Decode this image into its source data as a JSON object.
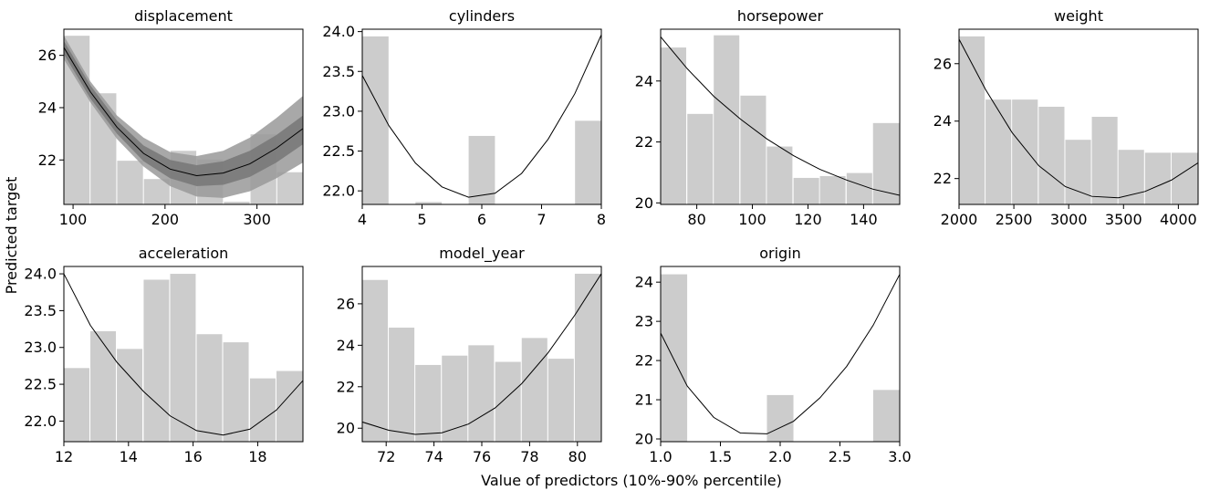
{
  "figure": {
    "ylabel": "Predicted target",
    "xlabel": "Value of predictors (10%-90% percentile)"
  },
  "colors": {
    "bar": "#cccccc",
    "line": "#000000",
    "band_outer": "#999999",
    "band_inner": "#777777"
  },
  "chart_data": [
    {
      "type": "bar+line",
      "title": "displacement",
      "xlim": [
        90,
        350
      ],
      "ylim": [
        20.3,
        27.0
      ],
      "xticks": [
        100,
        200,
        300
      ],
      "xtick_labels": [
        "100",
        "200",
        "300"
      ],
      "yticks": [
        22,
        24,
        26
      ],
      "ytick_labels": [
        "22",
        "24",
        "26"
      ],
      "bars": [
        {
          "x0": 90,
          "x1": 118,
          "value": 26.75
        },
        {
          "x0": 119,
          "x1": 147,
          "value": 24.55
        },
        {
          "x0": 148,
          "x1": 176,
          "value": 21.97
        },
        {
          "x0": 177,
          "x1": 205,
          "value": 21.27
        },
        {
          "x0": 206,
          "x1": 234,
          "value": 22.35
        },
        {
          "x0": 235,
          "x1": 263,
          "value": 22.02
        },
        {
          "x0": 264,
          "x1": 292,
          "value": 20.4
        },
        {
          "x0": 293,
          "x1": 321,
          "value": 22.98
        },
        {
          "x0": 322,
          "x1": 350,
          "value": 21.53
        }
      ],
      "line": {
        "x": [
          90,
          118.9,
          147.8,
          176.7,
          205.6,
          234.4,
          263.3,
          292.2,
          321.1,
          350
        ],
        "y": [
          26.3,
          24.6,
          23.25,
          22.25,
          21.65,
          21.4,
          21.5,
          21.85,
          22.45,
          23.2
        ]
      },
      "band_outer": {
        "x": [
          90,
          118.9,
          147.8,
          176.7,
          205.6,
          234.4,
          263.3,
          292.2,
          321.1,
          350
        ],
        "upper": [
          26.75,
          25.0,
          23.7,
          22.85,
          22.3,
          22.15,
          22.35,
          22.85,
          23.6,
          24.45
        ],
        "lower": [
          25.85,
          24.2,
          22.8,
          21.75,
          21.0,
          20.6,
          20.55,
          20.8,
          21.3,
          21.9
        ]
      },
      "band_inner": {
        "x": [
          90,
          118.9,
          147.8,
          176.7,
          205.6,
          234.4,
          263.3,
          292.2,
          321.1,
          350
        ],
        "upper": [
          26.55,
          24.85,
          23.5,
          22.55,
          22.0,
          21.8,
          21.95,
          22.35,
          22.95,
          23.7
        ],
        "lower": [
          26.05,
          24.35,
          23.0,
          21.95,
          21.3,
          21.0,
          21.05,
          21.35,
          21.9,
          22.6
        ]
      }
    },
    {
      "type": "bar+line",
      "title": "cylinders",
      "xlim": [
        4,
        8
      ],
      "ylim": [
        21.83,
        24.03
      ],
      "xticks": [
        4,
        5,
        6,
        7,
        8
      ],
      "xtick_labels": [
        "4",
        "5",
        "6",
        "7",
        "8"
      ],
      "yticks": [
        22.0,
        22.5,
        23.0,
        23.5,
        24.0
      ],
      "ytick_labels": [
        "22.0",
        "22.5",
        "23.0",
        "23.5",
        "24.0"
      ],
      "bars": [
        {
          "x0": 4.0,
          "x1": 4.44,
          "value": 23.94
        },
        {
          "x0": 4.89,
          "x1": 5.33,
          "value": 21.86
        },
        {
          "x0": 5.78,
          "x1": 6.22,
          "value": 22.69
        },
        {
          "x0": 7.56,
          "x1": 8.0,
          "value": 22.88
        }
      ],
      "line": {
        "x": [
          4,
          4.444,
          4.889,
          5.333,
          5.778,
          6.222,
          6.667,
          7.111,
          7.556,
          8
        ],
        "y": [
          23.45,
          22.82,
          22.35,
          22.05,
          21.92,
          21.97,
          22.22,
          22.65,
          23.22,
          23.96
        ]
      }
    },
    {
      "type": "bar+line",
      "title": "horsepower",
      "xlim": [
        67,
        153
      ],
      "ylim": [
        19.95,
        25.7
      ],
      "xticks": [
        80,
        100,
        120,
        140
      ],
      "xtick_labels": [
        "80",
        "100",
        "120",
        "140"
      ],
      "yticks": [
        20,
        22,
        24
      ],
      "ytick_labels": [
        "20",
        "22",
        "24"
      ],
      "bars": [
        {
          "x0": 67,
          "x1": 76.2,
          "value": 25.1
        },
        {
          "x0": 76.6,
          "x1": 85.8,
          "value": 22.92
        },
        {
          "x0": 86.1,
          "x1": 95.3,
          "value": 25.5
        },
        {
          "x0": 95.7,
          "x1": 104.9,
          "value": 23.52
        },
        {
          "x0": 105.2,
          "x1": 114.4,
          "value": 21.85
        },
        {
          "x0": 114.8,
          "x1": 124.0,
          "value": 20.82
        },
        {
          "x0": 124.3,
          "x1": 133.5,
          "value": 20.88
        },
        {
          "x0": 133.9,
          "x1": 143.1,
          "value": 20.98
        },
        {
          "x0": 143.4,
          "x1": 153,
          "value": 22.62
        }
      ],
      "line": {
        "x": [
          67,
          76.6,
          86.1,
          95.7,
          105.2,
          114.8,
          124.3,
          133.9,
          143.4,
          153
        ],
        "y": [
          25.45,
          24.4,
          23.5,
          22.75,
          22.1,
          21.55,
          21.1,
          20.75,
          20.45,
          20.25
        ]
      }
    },
    {
      "type": "bar+line",
      "title": "weight",
      "xlim": [
        2000,
        4180
      ],
      "ylim": [
        21.1,
        27.2
      ],
      "xticks": [
        2000,
        2500,
        3000,
        3500,
        4000
      ],
      "xtick_labels": [
        "2000",
        "2500",
        "3000",
        "3500",
        "4000"
      ],
      "yticks": [
        22,
        24,
        26
      ],
      "ytick_labels": [
        "22",
        "24",
        "26"
      ],
      "bars": [
        {
          "x0": 2000,
          "x1": 2234,
          "value": 26.95
        },
        {
          "x0": 2242,
          "x1": 2476,
          "value": 24.75
        },
        {
          "x0": 2484,
          "x1": 2718,
          "value": 24.75
        },
        {
          "x0": 2727,
          "x1": 2961,
          "value": 24.5
        },
        {
          "x0": 2969,
          "x1": 3203,
          "value": 23.35
        },
        {
          "x0": 3211,
          "x1": 3445,
          "value": 24.15
        },
        {
          "x0": 3453,
          "x1": 3687,
          "value": 23.0
        },
        {
          "x0": 3696,
          "x1": 3930,
          "value": 22.9
        },
        {
          "x0": 3938,
          "x1": 4180,
          "value": 22.9
        }
      ],
      "line": {
        "x": [
          2000,
          2242,
          2484,
          2727,
          2969,
          3211,
          3453,
          3696,
          3938,
          4180
        ],
        "y": [
          26.85,
          25.1,
          23.6,
          22.45,
          21.72,
          21.38,
          21.33,
          21.55,
          21.95,
          22.55
        ]
      }
    },
    {
      "type": "bar+line",
      "title": "acceleration",
      "xlim": [
        12,
        19.4
      ],
      "ylim": [
        21.72,
        24.1
      ],
      "xticks": [
        12,
        14,
        16,
        18
      ],
      "xtick_labels": [
        "12",
        "14",
        "16",
        "18"
      ],
      "yticks": [
        22.0,
        22.5,
        23.0,
        23.5,
        24.0
      ],
      "ytick_labels": [
        "22.0",
        "22.5",
        "23.0",
        "23.5",
        "24.0"
      ],
      "bars": [
        {
          "x0": 12.0,
          "x1": 12.79,
          "value": 22.72
        },
        {
          "x0": 12.82,
          "x1": 13.61,
          "value": 23.22
        },
        {
          "x0": 13.64,
          "x1": 14.43,
          "value": 22.98
        },
        {
          "x0": 14.47,
          "x1": 15.26,
          "value": 23.92
        },
        {
          "x0": 15.29,
          "x1": 16.08,
          "value": 24.0
        },
        {
          "x0": 16.11,
          "x1": 16.9,
          "value": 23.18
        },
        {
          "x0": 16.93,
          "x1": 17.72,
          "value": 23.07
        },
        {
          "x0": 17.76,
          "x1": 18.55,
          "value": 22.58
        },
        {
          "x0": 18.58,
          "x1": 19.4,
          "value": 22.68
        }
      ],
      "line": {
        "x": [
          12,
          12.82,
          13.64,
          14.47,
          15.29,
          16.11,
          16.93,
          17.76,
          18.58,
          19.4
        ],
        "y": [
          24.0,
          23.3,
          22.8,
          22.4,
          22.07,
          21.87,
          21.81,
          21.89,
          22.15,
          22.55
        ]
      }
    },
    {
      "type": "bar+line",
      "title": "model_year",
      "xlim": [
        71,
        81
      ],
      "ylim": [
        19.35,
        27.8
      ],
      "xticks": [
        72,
        74,
        76,
        78,
        80
      ],
      "xtick_labels": [
        "72",
        "74",
        "76",
        "78",
        "80"
      ],
      "yticks": [
        20,
        22,
        24,
        26
      ],
      "ytick_labels": [
        "20",
        "22",
        "24",
        "26"
      ],
      "bars": [
        {
          "x0": 71.0,
          "x1": 72.07,
          "value": 27.15
        },
        {
          "x0": 72.11,
          "x1": 73.18,
          "value": 24.85
        },
        {
          "x0": 73.22,
          "x1": 74.29,
          "value": 23.05
        },
        {
          "x0": 74.33,
          "x1": 75.4,
          "value": 23.5
        },
        {
          "x0": 75.44,
          "x1": 76.51,
          "value": 24.0
        },
        {
          "x0": 76.56,
          "x1": 77.63,
          "value": 23.2
        },
        {
          "x0": 77.67,
          "x1": 78.74,
          "value": 24.35
        },
        {
          "x0": 78.78,
          "x1": 79.85,
          "value": 23.35
        },
        {
          "x0": 79.89,
          "x1": 81.0,
          "value": 27.45
        }
      ],
      "line": {
        "x": [
          71,
          72.11,
          73.22,
          74.33,
          75.44,
          76.56,
          77.67,
          78.78,
          79.89,
          81
        ],
        "y": [
          20.3,
          19.9,
          19.7,
          19.78,
          20.2,
          20.98,
          22.15,
          23.65,
          25.45,
          27.45
        ]
      }
    },
    {
      "type": "bar+line",
      "title": "origin",
      "xlim": [
        1.0,
        3.0
      ],
      "ylim": [
        19.93,
        24.4
      ],
      "xticks": [
        1.0,
        1.5,
        2.0,
        2.5,
        3.0
      ],
      "xtick_labels": [
        "1.0",
        "1.5",
        "2.0",
        "2.5",
        "3.0"
      ],
      "yticks": [
        20,
        21,
        22,
        23,
        24
      ],
      "ytick_labels": [
        "20",
        "21",
        "22",
        "23",
        "24"
      ],
      "bars": [
        {
          "x0": 1.0,
          "x1": 1.222,
          "value": 24.2
        },
        {
          "x0": 1.889,
          "x1": 2.111,
          "value": 21.12
        },
        {
          "x0": 2.778,
          "x1": 3.0,
          "value": 21.25
        }
      ],
      "line": {
        "x": [
          1.0,
          1.222,
          1.444,
          1.667,
          1.889,
          2.111,
          2.333,
          2.556,
          2.778,
          3.0
        ],
        "y": [
          22.7,
          21.35,
          20.55,
          20.15,
          20.13,
          20.45,
          21.05,
          21.85,
          22.9,
          24.2
        ]
      }
    }
  ]
}
